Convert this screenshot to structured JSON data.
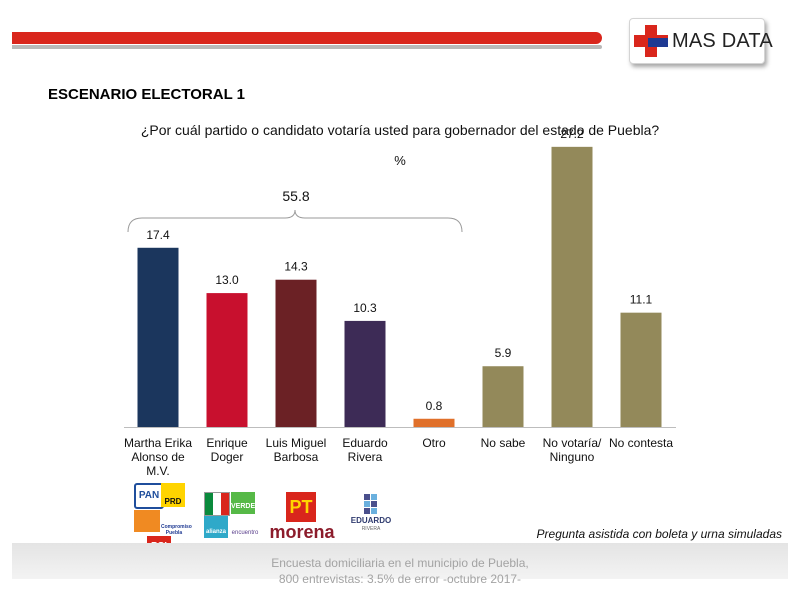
{
  "brand": {
    "name": "MAS DATA",
    "colors": {
      "red": "#d9261c",
      "blue": "#1f3a93"
    }
  },
  "header": {
    "title": "ESCENARIO ELECTORAL 1"
  },
  "question": "¿Por cuál partido o candidato votaría usted para gobernador del estado de Puebla?",
  "note": "Pregunta asistida con boleta y urna simuladas",
  "footer": {
    "line1": "Encuesta domiciliaria en el municipio de Puebla,",
    "line2": "800 entrevistas: 3.5% de error -octubre 2017-"
  },
  "logos": {
    "pan": "PAN",
    "prd": "PRD",
    "pt": "PT",
    "morena": "morena",
    "verde": "VERDE",
    "alianza": "alianza",
    "encuentro": "encuentro",
    "eduardo": "EDUARDO",
    "rivera": "RIVERA",
    "psi": "PSI",
    "compromiso": "Compromiso Puebla"
  },
  "chart_data": {
    "type": "bar",
    "unit_label": "%",
    "categories": [
      [
        "Martha Erika",
        "Alonso de",
        "M.V."
      ],
      [
        "Enrique",
        "Doger"
      ],
      [
        "Luis Miguel",
        "Barbosa"
      ],
      [
        "Eduardo",
        "Rivera"
      ],
      [
        "Otro"
      ],
      [
        "No sabe"
      ],
      [
        "No votaría/",
        "Ninguno"
      ],
      [
        "No contesta"
      ]
    ],
    "values": [
      17.4,
      13.0,
      14.3,
      10.3,
      0.8,
      5.9,
      27.2,
      11.1
    ],
    "value_labels": [
      "17.4",
      "13.0",
      "14.3",
      "10.3",
      "0.8",
      "5.9",
      "27.2",
      "11.1"
    ],
    "colors": [
      "#1b365d",
      "#c8102e",
      "#6b2125",
      "#3d2b56",
      "#e0702a",
      "#93895a",
      "#93895a",
      "#93895a"
    ],
    "bracket": {
      "from_index": 0,
      "to_index": 4,
      "label": "55.8"
    },
    "ylim": [
      0,
      30
    ],
    "grid": false,
    "legend": "none"
  }
}
